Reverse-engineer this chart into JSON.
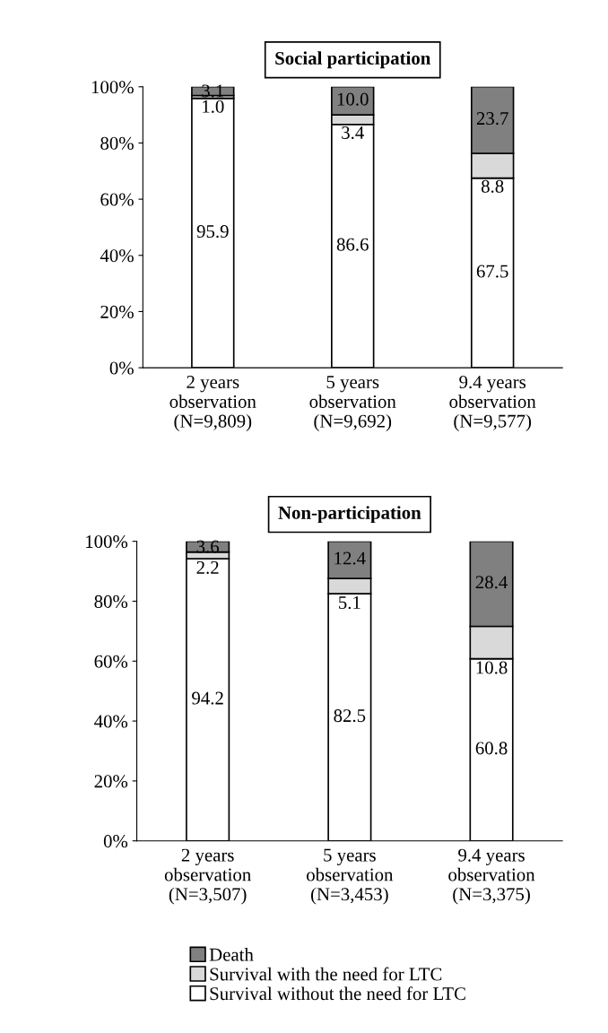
{
  "chart_data": [
    {
      "type": "bar",
      "title": "Social participation",
      "stacked": true,
      "legend": false,
      "grid": false,
      "categories": [
        "2 years\nobservation\n(N=9,809)",
        "5 years\nobservation\n(N=9,692)",
        "9.4 years\nobservation\n(N=9,577)"
      ],
      "ylim": [
        0,
        100
      ],
      "yticks": [
        {
          "value": 0,
          "label": "0%"
        },
        {
          "value": 20,
          "label": "20%"
        },
        {
          "value": 40,
          "label": "40%"
        },
        {
          "value": 60,
          "label": "60%"
        },
        {
          "value": 80,
          "label": "80%"
        },
        {
          "value": 100,
          "label": "100%"
        }
      ],
      "series": [
        {
          "color": "#ffffff",
          "values": [
            95.9,
            86.6,
            67.5
          ],
          "value_labels": [
            "95.9",
            "86.6",
            "67.5"
          ]
        },
        {
          "color": "#d9d9d9",
          "values": [
            1.0,
            3.4,
            8.8
          ],
          "value_labels": [
            "1.0",
            "3.4",
            "8.8"
          ]
        },
        {
          "color": "#808080",
          "values": [
            3.1,
            10.0,
            23.7
          ],
          "value_labels": [
            "3.1",
            "10.0",
            "23.7"
          ]
        }
      ]
    },
    {
      "type": "bar",
      "title": "Non-participation",
      "stacked": true,
      "legend": "bottom",
      "grid": false,
      "categories": [
        "2 years\nobservation\n(N=3,507)",
        "5 years\nobservation\n(N=3,453)",
        "9.4 years\nobservation\n(N=3,375)"
      ],
      "ylim": [
        0,
        100
      ],
      "yticks": [
        {
          "value": 0,
          "label": "0%"
        },
        {
          "value": 20,
          "label": "20%"
        },
        {
          "value": 40,
          "label": "40%"
        },
        {
          "value": 60,
          "label": "60%"
        },
        {
          "value": 80,
          "label": "80%"
        },
        {
          "value": 100,
          "label": "100%"
        }
      ],
      "series": [
        {
          "name": "Survival without the need for LTC",
          "color": "#ffffff",
          "values": [
            94.2,
            82.5,
            60.8
          ],
          "value_labels": [
            "94.2",
            "82.5",
            "60.8"
          ]
        },
        {
          "name": "Survival with the need for LTC",
          "color": "#d9d9d9",
          "values": [
            2.2,
            5.1,
            10.8
          ],
          "value_labels": [
            "2.2",
            "5.1",
            "10.8"
          ]
        },
        {
          "name": "Death",
          "color": "#808080",
          "values": [
            3.6,
            12.4,
            28.4
          ],
          "value_labels": [
            "3.6",
            "12.4",
            "28.4"
          ]
        }
      ]
    }
  ]
}
